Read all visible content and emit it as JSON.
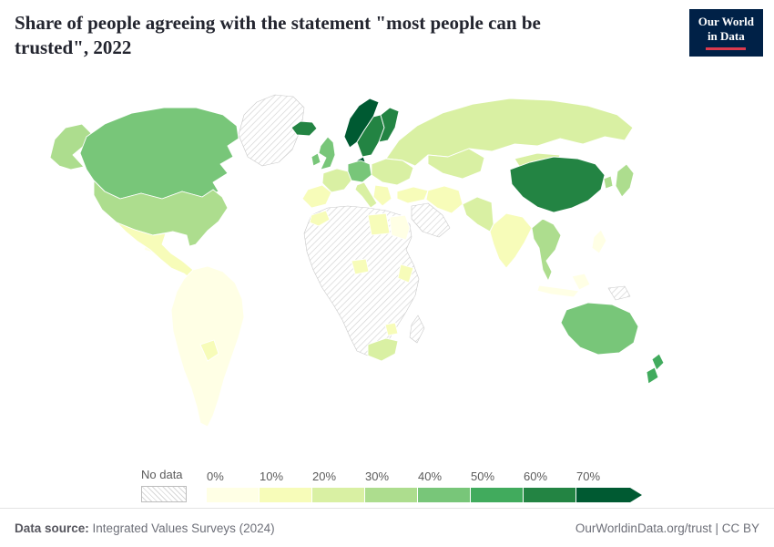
{
  "header": {
    "title": "Share of people agreeing with the statement \"most people can be trusted\", 2022"
  },
  "logo": {
    "line1": "Our World",
    "line2": "in Data",
    "bg_color": "#002147",
    "accent_color": "#dc3a4e"
  },
  "legend": {
    "no_data_label": "No data",
    "tick_labels": [
      "0%",
      "10%",
      "20%",
      "30%",
      "40%",
      "50%",
      "60%",
      "70%"
    ]
  },
  "footer": {
    "source_label": "Data source:",
    "source_value": "Integrated Values Surveys (2024)",
    "link": "OurWorldinData.org/trust | CC BY"
  },
  "chart_data": {
    "type": "choropleth-map",
    "title": "Share of people agreeing with the statement \"most people can be trusted\", 2022",
    "unit": "%",
    "color_breaks": [
      0,
      10,
      20,
      30,
      40,
      50,
      60,
      70
    ],
    "palette": [
      "#ffffe5",
      "#f7fcb9",
      "#d9f0a3",
      "#addd8e",
      "#78c679",
      "#41ab5d",
      "#238443",
      "#005a32"
    ],
    "no_data_style": "diagonal-hatch",
    "regions": {
      "greenland": null,
      "alaska": 37,
      "canada": 47,
      "united-states": 37,
      "cuba": 5,
      "mexico-central-america": 11,
      "south-america": 8,
      "bolivia": 14,
      "iceland": 66,
      "ireland": 45,
      "united-kingdom": 42,
      "norway": 72,
      "sweden": 63,
      "finland": 68,
      "denmark": 74,
      "france": 26,
      "iberia": 19,
      "germany-central-europe": 45,
      "italy": 27,
      "eastern-europe": 25,
      "balkans": 15,
      "turkey": 14,
      "russia": 23,
      "central-asia": 25,
      "iran": 15,
      "arabian-peninsula": null,
      "africa-base": null,
      "morocco": 12,
      "libya": 12,
      "egypt": 7,
      "nigeria": 12,
      "east-africa": 12,
      "zimbabwe": 12,
      "south-africa": 23,
      "madagascar": null,
      "pakistan-afghanistan": 22,
      "india": 17,
      "mongolia": 25,
      "china": 64,
      "southeast-asia": 30,
      "indonesia": 5,
      "philippines": 5,
      "papua-new-guinea": null,
      "japan": 34,
      "south-korea": 33,
      "australia": 48,
      "new-zealand": 57
    }
  }
}
